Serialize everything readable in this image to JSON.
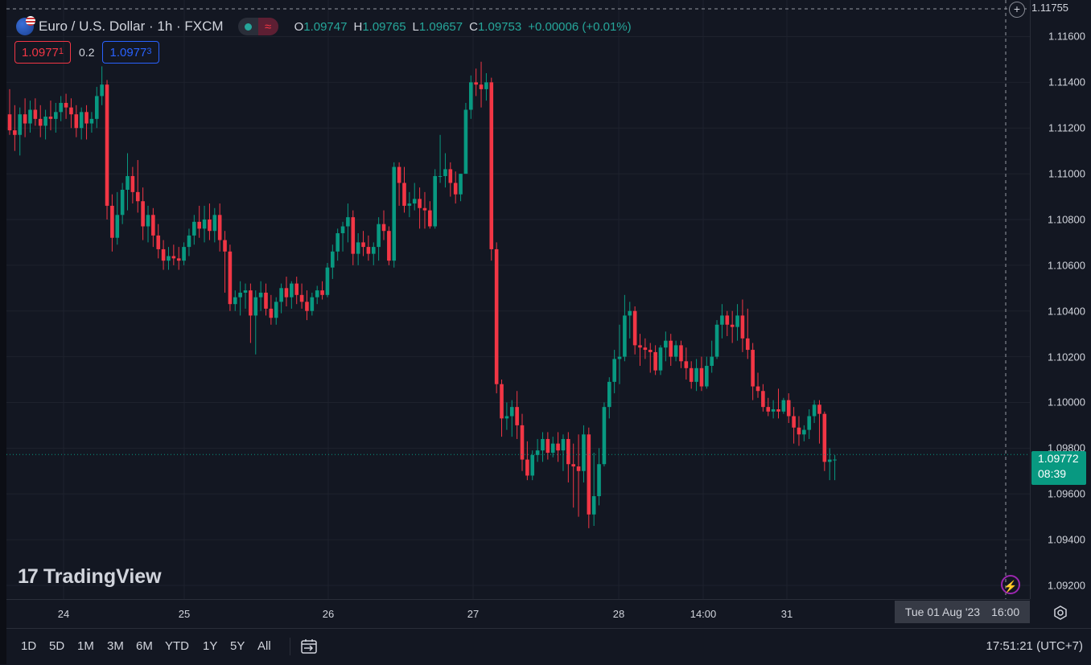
{
  "header": {
    "symbol_title": "Euro / U.S. Dollar · 1h · FXCM",
    "status_icon": "market-open-dot",
    "wave_icon": "≈",
    "ohlc": {
      "o_label": "O",
      "o": "1.09747",
      "h_label": "H",
      "h": "1.09765",
      "l_label": "L",
      "l": "1.09657",
      "c_label": "C",
      "c": "1.09753",
      "change": "+0.00006 (+0.01%)"
    }
  },
  "quotes": {
    "sell_main": "1.0977",
    "sell_pip": "1",
    "spread": "0.2",
    "buy_main": "1.0977",
    "buy_pip": "3"
  },
  "watermark": {
    "logo": "17",
    "text": "TradingView"
  },
  "price_axis": {
    "top_partial": "1.11755",
    "ticks": [
      "1.11600",
      "1.11400",
      "1.11200",
      "1.11000",
      "1.10800",
      "1.10600",
      "1.10400",
      "1.10200",
      "1.10000",
      "1.09800",
      "1.09600",
      "1.09400",
      "1.09200"
    ],
    "last_price": "1.09772",
    "countdown": "08:39"
  },
  "time_axis": {
    "ticks": [
      "24",
      "25",
      "26",
      "27",
      "28",
      "14:00",
      "31"
    ],
    "crosshair_date": "Tue 01 Aug '23",
    "crosshair_time": "16:00"
  },
  "bottom_bar": {
    "ranges": [
      "1D",
      "5D",
      "1M",
      "3M",
      "6M",
      "YTD",
      "1Y",
      "5Y",
      "All"
    ],
    "clock": "17:51:21 (UTC+7)"
  },
  "colors": {
    "up": "#089981",
    "down": "#f23645",
    "background": "#131722",
    "grid": "#1e222d"
  },
  "chart_data": {
    "type": "candlestick",
    "symbol": "EURUSD",
    "interval": "1h",
    "ylim": [
      1.0914,
      1.1176
    ],
    "last_price": 1.09772,
    "x_labels": [
      "24",
      "25",
      "26",
      "27",
      "28",
      "14:00",
      "31"
    ],
    "candles": [
      [
        1.1126,
        1.1137,
        1.1117,
        1.1119
      ],
      [
        1.1119,
        1.113,
        1.111,
        1.1117
      ],
      [
        1.1117,
        1.1129,
        1.1108,
        1.1126
      ],
      [
        1.1126,
        1.1133,
        1.1116,
        1.1122
      ],
      [
        1.1122,
        1.1132,
        1.1118,
        1.1128
      ],
      [
        1.1128,
        1.1133,
        1.1121,
        1.1124
      ],
      [
        1.1124,
        1.113,
        1.1116,
        1.1121
      ],
      [
        1.1121,
        1.1128,
        1.1115,
        1.1125
      ],
      [
        1.1125,
        1.1132,
        1.1119,
        1.1124
      ],
      [
        1.1124,
        1.1131,
        1.1118,
        1.1127
      ],
      [
        1.1127,
        1.1134,
        1.1123,
        1.1131
      ],
      [
        1.1131,
        1.1135,
        1.1124,
        1.1129
      ],
      [
        1.1129,
        1.1133,
        1.112,
        1.1126
      ],
      [
        1.1126,
        1.113,
        1.1116,
        1.112
      ],
      [
        1.112,
        1.1129,
        1.1115,
        1.1127
      ],
      [
        1.1127,
        1.113,
        1.1115,
        1.1122
      ],
      [
        1.1122,
        1.1127,
        1.1118,
        1.1124
      ],
      [
        1.1124,
        1.1138,
        1.112,
        1.1134
      ],
      [
        1.1134,
        1.1147,
        1.113,
        1.1139
      ],
      [
        1.1139,
        1.1141,
        1.108,
        1.1086
      ],
      [
        1.1086,
        1.1091,
        1.1066,
        1.1072
      ],
      [
        1.1072,
        1.1092,
        1.1069,
        1.1082
      ],
      [
        1.1082,
        1.1096,
        1.1078,
        1.1093
      ],
      [
        1.1093,
        1.1109,
        1.1084,
        1.1099
      ],
      [
        1.1099,
        1.1103,
        1.1087,
        1.1092
      ],
      [
        1.1092,
        1.1106,
        1.1083,
        1.1088
      ],
      [
        1.1088,
        1.1094,
        1.1071,
        1.1077
      ],
      [
        1.1077,
        1.1086,
        1.107,
        1.1082
      ],
      [
        1.1082,
        1.1085,
        1.1068,
        1.1073
      ],
      [
        1.1073,
        1.1078,
        1.1063,
        1.1067
      ],
      [
        1.1067,
        1.1071,
        1.1058,
        1.1062
      ],
      [
        1.1062,
        1.1068,
        1.1058,
        1.1064
      ],
      [
        1.1064,
        1.1069,
        1.106,
        1.1063
      ],
      [
        1.1063,
        1.1068,
        1.1058,
        1.1062
      ],
      [
        1.1062,
        1.107,
        1.106,
        1.1068
      ],
      [
        1.1068,
        1.1076,
        1.1064,
        1.1073
      ],
      [
        1.1073,
        1.1082,
        1.1069,
        1.1079
      ],
      [
        1.1079,
        1.1086,
        1.1072,
        1.1076
      ],
      [
        1.1076,
        1.1086,
        1.107,
        1.108
      ],
      [
        1.108,
        1.1087,
        1.1071,
        1.1075
      ],
      [
        1.1075,
        1.1085,
        1.107,
        1.1082
      ],
      [
        1.1082,
        1.1087,
        1.1066,
        1.1071
      ],
      [
        1.1071,
        1.1075,
        1.1048,
        1.1066
      ],
      [
        1.1066,
        1.1069,
        1.104,
        1.1043
      ],
      [
        1.1043,
        1.1049,
        1.104,
        1.1046
      ],
      [
        1.1046,
        1.1053,
        1.1038,
        1.1048
      ],
      [
        1.1048,
        1.1052,
        1.1041,
        1.1049
      ],
      [
        1.1049,
        1.1052,
        1.1026,
        1.1038
      ],
      [
        1.1038,
        1.1049,
        1.1021,
        1.1046
      ],
      [
        1.1046,
        1.1053,
        1.104,
        1.1048
      ],
      [
        1.1048,
        1.1052,
        1.1038,
        1.1041
      ],
      [
        1.1041,
        1.1047,
        1.1034,
        1.1037
      ],
      [
        1.1037,
        1.1046,
        1.1034,
        1.1044
      ],
      [
        1.1044,
        1.1052,
        1.1039,
        1.105
      ],
      [
        1.105,
        1.1055,
        1.1042,
        1.1046
      ],
      [
        1.1046,
        1.1053,
        1.1041,
        1.1052
      ],
      [
        1.1052,
        1.1055,
        1.1043,
        1.1047
      ],
      [
        1.1047,
        1.1052,
        1.1041,
        1.1044
      ],
      [
        1.1044,
        1.1049,
        1.1036,
        1.104
      ],
      [
        1.104,
        1.1048,
        1.1038,
        1.1046
      ],
      [
        1.1046,
        1.1051,
        1.1043,
        1.1049
      ],
      [
        1.1049,
        1.1053,
        1.1045,
        1.1047
      ],
      [
        1.1047,
        1.1061,
        1.1046,
        1.1059
      ],
      [
        1.1059,
        1.1069,
        1.1054,
        1.1066
      ],
      [
        1.1066,
        1.1076,
        1.1062,
        1.1074
      ],
      [
        1.1074,
        1.1079,
        1.1066,
        1.1077
      ],
      [
        1.1077,
        1.1087,
        1.107,
        1.1081
      ],
      [
        1.1081,
        1.1084,
        1.106,
        1.1065
      ],
      [
        1.1065,
        1.1074,
        1.106,
        1.107
      ],
      [
        1.107,
        1.1075,
        1.1064,
        1.1068
      ],
      [
        1.1068,
        1.1073,
        1.1062,
        1.1065
      ],
      [
        1.1065,
        1.107,
        1.106,
        1.1068
      ],
      [
        1.1068,
        1.1081,
        1.1062,
        1.1078
      ],
      [
        1.1078,
        1.1084,
        1.1071,
        1.1075
      ],
      [
        1.1075,
        1.1077,
        1.106,
        1.1062
      ],
      [
        1.1062,
        1.1105,
        1.1059,
        1.1103
      ],
      [
        1.1103,
        1.1105,
        1.1086,
        1.1096
      ],
      [
        1.1096,
        1.1103,
        1.1083,
        1.1086
      ],
      [
        1.1086,
        1.1092,
        1.1081,
        1.1087
      ],
      [
        1.1087,
        1.1096,
        1.1084,
        1.1089
      ],
      [
        1.1089,
        1.1094,
        1.1076,
        1.1085
      ],
      [
        1.1085,
        1.1092,
        1.1076,
        1.1084
      ],
      [
        1.1084,
        1.1088,
        1.1076,
        1.1077
      ],
      [
        1.1077,
        1.1102,
        1.1076,
        1.1099
      ],
      [
        1.1099,
        1.1117,
        1.1096,
        1.1099
      ],
      [
        1.1099,
        1.1109,
        1.1094,
        1.1102
      ],
      [
        1.1102,
        1.1105,
        1.109,
        1.1096
      ],
      [
        1.1096,
        1.1101,
        1.1087,
        1.1091
      ],
      [
        1.1091,
        1.11,
        1.1088,
        1.11
      ],
      [
        1.11,
        1.1131,
        1.11,
        1.1128
      ],
      [
        1.1128,
        1.1143,
        1.1124,
        1.114
      ],
      [
        1.114,
        1.1146,
        1.1134,
        1.1139
      ],
      [
        1.1139,
        1.1149,
        1.1129,
        1.1137
      ],
      [
        1.1137,
        1.1144,
        1.1132,
        1.114
      ],
      [
        1.114,
        1.1142,
        1.1062,
        1.1067
      ],
      [
        1.1067,
        1.107,
        1.1004,
        1.1008
      ],
      [
        1.1008,
        1.101,
        1.0985,
        1.0993
      ],
      [
        1.0993,
        1.1,
        1.0988,
        1.0994
      ],
      [
        1.0994,
        1.1001,
        1.0985,
        1.0998
      ],
      [
        1.0998,
        1.1005,
        1.0984,
        1.099
      ],
      [
        1.099,
        1.0995,
        1.097,
        1.0975
      ],
      [
        1.0975,
        1.0983,
        1.0966,
        1.0968
      ],
      [
        1.0968,
        1.0979,
        1.0966,
        1.0977
      ],
      [
        1.0977,
        1.0984,
        1.0974,
        1.0979
      ],
      [
        1.0979,
        1.0987,
        1.0974,
        1.0984
      ],
      [
        1.0984,
        1.0987,
        1.0975,
        1.0978
      ],
      [
        1.0978,
        1.0985,
        1.0976,
        1.0982
      ],
      [
        1.0982,
        1.0987,
        1.0974,
        1.0979
      ],
      [
        1.0979,
        1.0986,
        1.097,
        1.0984
      ],
      [
        1.0984,
        1.0987,
        1.0965,
        1.0973
      ],
      [
        1.0973,
        1.0982,
        1.0954,
        1.0972
      ],
      [
        1.0972,
        1.0986,
        1.095,
        1.097
      ],
      [
        1.097,
        1.099,
        1.0965,
        1.0986
      ],
      [
        1.0986,
        1.0989,
        1.0945,
        1.0951
      ],
      [
        1.0951,
        1.0978,
        1.0946,
        1.0959
      ],
      [
        1.0959,
        1.098,
        1.0955,
        1.0973
      ],
      [
        1.0973,
        1.1,
        1.0972,
        1.0998
      ],
      [
        1.0998,
        1.1011,
        1.0993,
        1.1009
      ],
      [
        1.1009,
        1.1023,
        1.1004,
        1.1019
      ],
      [
        1.1019,
        1.1034,
        1.1008,
        1.102
      ],
      [
        1.102,
        1.1047,
        1.1018,
        1.1038
      ],
      [
        1.1038,
        1.1044,
        1.1028,
        1.104
      ],
      [
        1.104,
        1.1042,
        1.1021,
        1.1025
      ],
      [
        1.1025,
        1.103,
        1.1016,
        1.1024
      ],
      [
        1.1024,
        1.1028,
        1.1019,
        1.1023
      ],
      [
        1.1023,
        1.1026,
        1.1013,
        1.1022
      ],
      [
        1.1022,
        1.1025,
        1.1012,
        1.1014
      ],
      [
        1.1014,
        1.1025,
        1.1012,
        1.1024
      ],
      [
        1.1024,
        1.1031,
        1.1018,
        1.1027
      ],
      [
        1.1027,
        1.103,
        1.1016,
        1.102
      ],
      [
        1.102,
        1.1027,
        1.1018,
        1.1025
      ],
      [
        1.1025,
        1.1027,
        1.1015,
        1.1018
      ],
      [
        1.1018,
        1.1024,
        1.101,
        1.1015
      ],
      [
        1.1015,
        1.1018,
        1.1006,
        1.1009
      ],
      [
        1.1009,
        1.1019,
        1.1005,
        1.1015
      ],
      [
        1.1015,
        1.102,
        1.1005,
        1.1007
      ],
      [
        1.1007,
        1.102,
        1.1006,
        1.1016
      ],
      [
        1.1016,
        1.1027,
        1.1013,
        1.102
      ],
      [
        1.102,
        1.1036,
        1.1019,
        1.1034
      ],
      [
        1.1034,
        1.1043,
        1.1028,
        1.1038
      ],
      [
        1.1038,
        1.104,
        1.1029,
        1.1034
      ],
      [
        1.1034,
        1.104,
        1.1026,
        1.1033
      ],
      [
        1.1033,
        1.1043,
        1.1027,
        1.1038
      ],
      [
        1.1038,
        1.1045,
        1.1022,
        1.1028
      ],
      [
        1.1028,
        1.1041,
        1.1019,
        1.1023
      ],
      [
        1.1023,
        1.1026,
        1.1001,
        1.1007
      ],
      [
        1.1007,
        1.1013,
        1.1002,
        1.1005
      ],
      [
        1.1005,
        1.1008,
        1.0996,
        1.0998
      ],
      [
        1.0998,
        1.1002,
        1.0994,
        1.0996
      ],
      [
        1.0996,
        1.1001,
        1.0993,
        1.0997
      ],
      [
        1.0997,
        1.1006,
        1.0993,
        1.0996
      ],
      [
        1.0996,
        1.1002,
        1.0995,
        1.1001
      ],
      [
        1.1001,
        1.1004,
        1.0991,
        1.0994
      ],
      [
        1.0994,
        1.0998,
        1.0982,
        1.0989
      ],
      [
        1.0989,
        1.0994,
        1.0981,
        1.0986
      ],
      [
        1.0986,
        1.099,
        1.0983,
        1.0988
      ],
      [
        1.0988,
        1.0997,
        1.0984,
        1.0994
      ],
      [
        1.0994,
        1.1001,
        1.0991,
        1.0999
      ],
      [
        1.0999,
        1.1001,
        1.0982,
        1.0995
      ],
      [
        1.0995,
        1.0996,
        1.097,
        1.0974
      ],
      [
        1.0974,
        1.098,
        1.0966,
        1.0975
      ],
      [
        1.0975,
        1.0977,
        1.0966,
        1.0975
      ]
    ]
  }
}
